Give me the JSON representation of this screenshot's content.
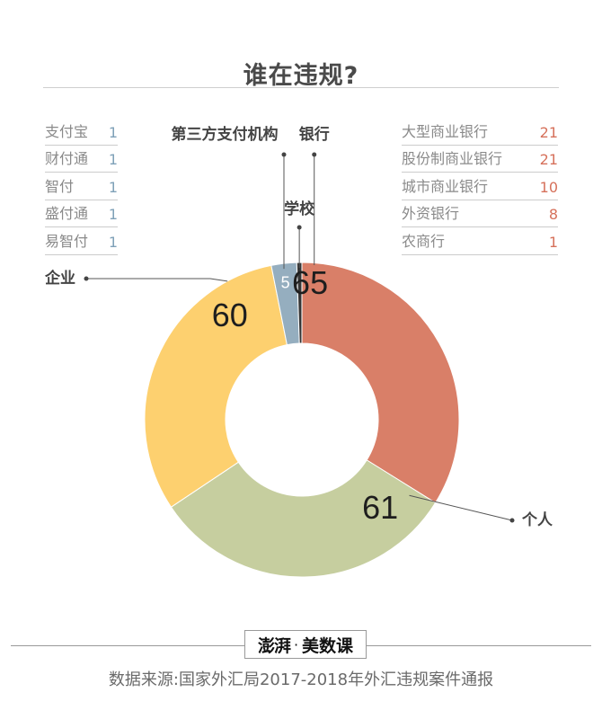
{
  "chart_data": {
    "type": "pie",
    "title": "谁在违规?",
    "series": [
      {
        "name": "银行",
        "value": 65,
        "color": "#d97f68"
      },
      {
        "name": "个人",
        "value": 61,
        "color": "#c6ce9f"
      },
      {
        "name": "企业",
        "value": 60,
        "color": "#fdd06f"
      },
      {
        "name": "第三方支付机构",
        "value": 5,
        "color": "#95aebf"
      },
      {
        "name": "学校",
        "value": 1,
        "color": "#353535"
      }
    ],
    "donut": true,
    "breakdowns": {
      "第三方支付机构": [
        {
          "name": "支付宝",
          "value": 1
        },
        {
          "name": "财付通",
          "value": 1
        },
        {
          "name": "智付",
          "value": 1
        },
        {
          "name": "盛付通",
          "value": 1
        },
        {
          "name": "易智付",
          "value": 1
        }
      ],
      "银行": [
        {
          "name": "大型商业银行",
          "value": 21
        },
        {
          "name": "股份制商业银行",
          "value": 21
        },
        {
          "name": "城市商业银行",
          "value": 10
        },
        {
          "name": "外资银行",
          "value": 8
        },
        {
          "name": "农商行",
          "value": 1
        }
      ]
    }
  },
  "branding": {
    "logo_seal": "澎湃",
    "logo_text": "美数课"
  },
  "source": "数据来源:国家外汇局2017-2018年外汇违规案件通报"
}
